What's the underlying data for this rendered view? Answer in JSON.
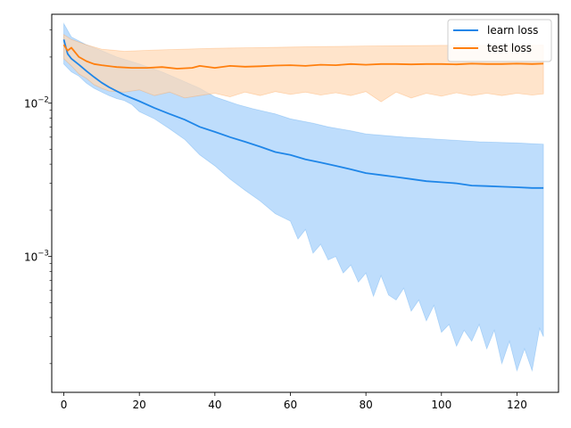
{
  "chart_data": {
    "type": "line",
    "title": "",
    "xlabel": "",
    "ylabel": "",
    "xlim": [
      -3.2,
      131
    ],
    "ylim": [
      0.00013,
      0.038
    ],
    "yscale": "log",
    "x_ticks": [
      0,
      20,
      40,
      60,
      80,
      100,
      120
    ],
    "y_ticks": [
      {
        "value": 0.001,
        "base": "10",
        "exp": "−3"
      },
      {
        "value": 0.01,
        "base": "10",
        "exp": "−2"
      }
    ],
    "grid": false,
    "legend_position": "top-right",
    "series": [
      {
        "name": "learn loss",
        "color": "#1f86e8",
        "band_color": "#a8d2fb",
        "points": [
          [
            0,
            0.026
          ],
          [
            1,
            0.021
          ],
          [
            2,
            0.0195
          ],
          [
            4,
            0.0178
          ],
          [
            6,
            0.0162
          ],
          [
            8,
            0.0148
          ],
          [
            10,
            0.0136
          ],
          [
            12,
            0.0127
          ],
          [
            16,
            0.0113
          ],
          [
            20,
            0.0103
          ],
          [
            24,
            0.0093
          ],
          [
            28,
            0.0085
          ],
          [
            32,
            0.0078
          ],
          [
            36,
            0.007
          ],
          [
            40,
            0.0065
          ],
          [
            44,
            0.006
          ],
          [
            48,
            0.0056
          ],
          [
            52,
            0.0052
          ],
          [
            56,
            0.0048
          ],
          [
            60,
            0.0046
          ],
          [
            64,
            0.0043
          ],
          [
            68,
            0.0041
          ],
          [
            72,
            0.0039
          ],
          [
            76,
            0.0037
          ],
          [
            80,
            0.0035
          ],
          [
            84,
            0.0034
          ],
          [
            88,
            0.0033
          ],
          [
            92,
            0.0032
          ],
          [
            96,
            0.0031
          ],
          [
            100,
            0.00305
          ],
          [
            104,
            0.003
          ],
          [
            108,
            0.0029
          ],
          [
            112,
            0.00288
          ],
          [
            116,
            0.00285
          ],
          [
            120,
            0.00283
          ],
          [
            124,
            0.0028
          ],
          [
            127,
            0.0028
          ]
        ],
        "band_upper": [
          [
            0,
            0.033
          ],
          [
            2,
            0.027
          ],
          [
            6,
            0.024
          ],
          [
            10,
            0.022
          ],
          [
            14,
            0.02
          ],
          [
            20,
            0.018
          ],
          [
            26,
            0.016
          ],
          [
            30,
            0.0145
          ],
          [
            36,
            0.0125
          ],
          [
            40,
            0.011
          ],
          [
            46,
            0.0098
          ],
          [
            50,
            0.0092
          ],
          [
            56,
            0.0085
          ],
          [
            60,
            0.0079
          ],
          [
            66,
            0.0074
          ],
          [
            70,
            0.007
          ],
          [
            76,
            0.0066
          ],
          [
            80,
            0.0063
          ],
          [
            90,
            0.006
          ],
          [
            100,
            0.0058
          ],
          [
            110,
            0.0056
          ],
          [
            120,
            0.0055
          ],
          [
            127,
            0.0054
          ]
        ],
        "band_lower": [
          [
            0,
            0.018
          ],
          [
            2,
            0.016
          ],
          [
            4,
            0.015
          ],
          [
            6,
            0.0135
          ],
          [
            8,
            0.0125
          ],
          [
            10,
            0.0118
          ],
          [
            12,
            0.0112
          ],
          [
            14,
            0.0107
          ],
          [
            16,
            0.0104
          ],
          [
            18,
            0.0098
          ],
          [
            20,
            0.0088
          ],
          [
            24,
            0.0079
          ],
          [
            28,
            0.0068
          ],
          [
            32,
            0.0058
          ],
          [
            36,
            0.0046
          ],
          [
            40,
            0.0039
          ],
          [
            44,
            0.0032
          ],
          [
            48,
            0.0027
          ],
          [
            52,
            0.0023
          ],
          [
            56,
            0.0019
          ],
          [
            60,
            0.0017
          ],
          [
            62,
            0.0013
          ],
          [
            64,
            0.0015
          ],
          [
            66,
            0.00105
          ],
          [
            68,
            0.0012
          ],
          [
            70,
            0.00095
          ],
          [
            72,
            0.001
          ],
          [
            74,
            0.00078
          ],
          [
            76,
            0.00088
          ],
          [
            78,
            0.00068
          ],
          [
            80,
            0.00078
          ],
          [
            82,
            0.00055
          ],
          [
            84,
            0.00075
          ],
          [
            86,
            0.00056
          ],
          [
            88,
            0.00052
          ],
          [
            90,
            0.00062
          ],
          [
            92,
            0.00044
          ],
          [
            94,
            0.00052
          ],
          [
            96,
            0.00038
          ],
          [
            98,
            0.00048
          ],
          [
            100,
            0.00032
          ],
          [
            102,
            0.00036
          ],
          [
            104,
            0.00026
          ],
          [
            106,
            0.00033
          ],
          [
            108,
            0.00028
          ],
          [
            110,
            0.00036
          ],
          [
            112,
            0.00025
          ],
          [
            114,
            0.00033
          ],
          [
            116,
            0.0002
          ],
          [
            118,
            0.00028
          ],
          [
            120,
            0.00018
          ],
          [
            122,
            0.00025
          ],
          [
            124,
            0.00018
          ],
          [
            126,
            0.00034
          ],
          [
            127,
            0.0003
          ]
        ]
      },
      {
        "name": "test loss",
        "color": "#ff7f0e",
        "band_color": "#ffd8b5",
        "points": [
          [
            0,
            0.024
          ],
          [
            1,
            0.022
          ],
          [
            2,
            0.023
          ],
          [
            4,
            0.02
          ],
          [
            6,
            0.0188
          ],
          [
            8,
            0.018
          ],
          [
            10,
            0.0177
          ],
          [
            14,
            0.0172
          ],
          [
            18,
            0.017
          ],
          [
            22,
            0.017
          ],
          [
            26,
            0.0172
          ],
          [
            30,
            0.0168
          ],
          [
            34,
            0.017
          ],
          [
            36,
            0.0175
          ],
          [
            40,
            0.017
          ],
          [
            44,
            0.0175
          ],
          [
            48,
            0.0173
          ],
          [
            52,
            0.0174
          ],
          [
            56,
            0.0176
          ],
          [
            60,
            0.0177
          ],
          [
            64,
            0.0175
          ],
          [
            68,
            0.0178
          ],
          [
            72,
            0.0177
          ],
          [
            76,
            0.018
          ],
          [
            80,
            0.0178
          ],
          [
            84,
            0.018
          ],
          [
            88,
            0.018
          ],
          [
            92,
            0.0179
          ],
          [
            96,
            0.018
          ],
          [
            100,
            0.018
          ],
          [
            104,
            0.0179
          ],
          [
            108,
            0.0181
          ],
          [
            112,
            0.018
          ],
          [
            116,
            0.018
          ],
          [
            120,
            0.0181
          ],
          [
            124,
            0.018
          ],
          [
            127,
            0.0181
          ]
        ],
        "band_upper": [
          [
            0,
            0.028
          ],
          [
            2,
            0.026
          ],
          [
            6,
            0.024
          ],
          [
            10,
            0.0225
          ],
          [
            16,
            0.0218
          ],
          [
            24,
            0.0222
          ],
          [
            32,
            0.0225
          ],
          [
            40,
            0.0228
          ],
          [
            50,
            0.023
          ],
          [
            60,
            0.0232
          ],
          [
            70,
            0.0234
          ],
          [
            80,
            0.0236
          ],
          [
            90,
            0.0237
          ],
          [
            100,
            0.0238
          ],
          [
            110,
            0.0238
          ],
          [
            120,
            0.0238
          ],
          [
            127,
            0.0239
          ]
        ],
        "band_lower": [
          [
            0,
            0.0195
          ],
          [
            2,
            0.0175
          ],
          [
            4,
            0.0155
          ],
          [
            6,
            0.0145
          ],
          [
            8,
            0.0132
          ],
          [
            10,
            0.0125
          ],
          [
            12,
            0.012
          ],
          [
            16,
            0.0118
          ],
          [
            20,
            0.0122
          ],
          [
            24,
            0.0112
          ],
          [
            28,
            0.0118
          ],
          [
            32,
            0.0108
          ],
          [
            36,
            0.0112
          ],
          [
            40,
            0.0116
          ],
          [
            44,
            0.011
          ],
          [
            48,
            0.0118
          ],
          [
            52,
            0.0112
          ],
          [
            56,
            0.0119
          ],
          [
            60,
            0.0114
          ],
          [
            64,
            0.0118
          ],
          [
            68,
            0.0113
          ],
          [
            72,
            0.0117
          ],
          [
            76,
            0.0112
          ],
          [
            80,
            0.0119
          ],
          [
            84,
            0.0102
          ],
          [
            88,
            0.0118
          ],
          [
            92,
            0.0108
          ],
          [
            96,
            0.0116
          ],
          [
            100,
            0.0111
          ],
          [
            104,
            0.0117
          ],
          [
            108,
            0.0112
          ],
          [
            112,
            0.0116
          ],
          [
            116,
            0.0112
          ],
          [
            120,
            0.0116
          ],
          [
            124,
            0.0113
          ],
          [
            127,
            0.0115
          ]
        ]
      }
    ]
  }
}
